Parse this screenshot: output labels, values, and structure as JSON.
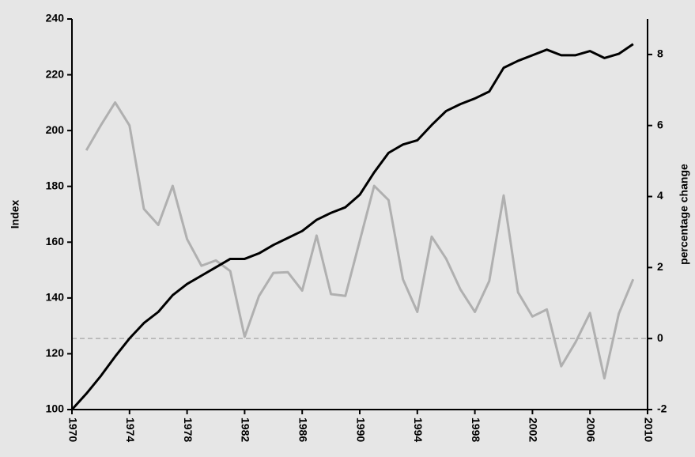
{
  "chart_data": {
    "type": "line",
    "x": [
      1970,
      1971,
      1972,
      1973,
      1974,
      1975,
      1976,
      1977,
      1978,
      1979,
      1980,
      1981,
      1982,
      1983,
      1984,
      1985,
      1986,
      1987,
      1988,
      1989,
      1990,
      1991,
      1992,
      1993,
      1994,
      1995,
      1996,
      1997,
      1998,
      1999,
      2000,
      2001,
      2002,
      2003,
      2004,
      2005,
      2006,
      2007,
      2008,
      2009
    ],
    "series": [
      {
        "color": "#000000",
        "values": [
          100,
          105.7,
          112,
          119,
          125.5,
          131,
          135,
          141,
          145,
          148,
          151,
          154,
          154,
          156,
          159,
          161.5,
          164,
          168,
          170.5,
          172.5,
          177,
          185,
          192,
          195,
          196.5,
          202,
          207,
          209.5,
          211.5,
          214,
          222.5,
          225,
          227,
          229,
          227,
          227,
          228.5,
          226,
          227.5,
          231
        ]
      },
      {
        "color": "#b0b0b0",
        "axis": "y2",
        "values": [
          null,
          5.3,
          6.0,
          6.65,
          6.0,
          3.65,
          3.2,
          4.3,
          2.8,
          2.05,
          2.2,
          1.9,
          0.05,
          1.2,
          1.85,
          1.87,
          1.35,
          2.9,
          1.25,
          1.2,
          2.75,
          4.3,
          3.9,
          1.67,
          0.75,
          2.87,
          2.25,
          1.38,
          0.75,
          1.62,
          4.03,
          1.3,
          0.62,
          0.82,
          -0.78,
          -0.1,
          0.72,
          -1.12,
          0.7,
          1.67
        ]
      }
    ],
    "ylabel": "Index",
    "y2label": "percentage change",
    "xlim": [
      1970,
      2010
    ],
    "xticks": [
      1970,
      1974,
      1978,
      1982,
      1986,
      1990,
      1994,
      1998,
      2002,
      2006,
      2010
    ],
    "ylim": [
      100,
      240
    ],
    "yticks": [
      100,
      120,
      140,
      160,
      180,
      200,
      220,
      240
    ],
    "y2lim": [
      -2,
      9
    ],
    "y2ticks": [
      -2,
      0,
      2,
      4,
      6,
      8
    ],
    "y2_reference_line": 0,
    "reference_color": "#b0b0b0"
  }
}
